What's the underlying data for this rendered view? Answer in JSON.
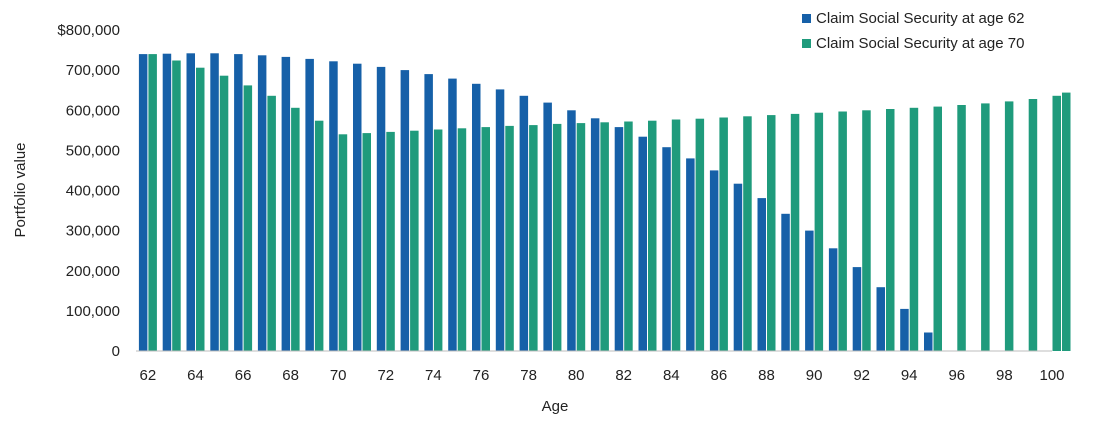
{
  "chart_data": {
    "type": "bar",
    "title": "",
    "xlabel": "Age",
    "ylabel": "Portfolio value",
    "ylim": [
      0,
      800000
    ],
    "yticks": [
      {
        "value": 0,
        "label": "0"
      },
      {
        "value": 100000,
        "label": "100,000"
      },
      {
        "value": 200000,
        "label": "200,000"
      },
      {
        "value": 300000,
        "label": "300,000"
      },
      {
        "value": 400000,
        "label": "400,000"
      },
      {
        "value": 500000,
        "label": "500,000"
      },
      {
        "value": 600000,
        "label": "600,000"
      },
      {
        "value": 700000,
        "label": "700,000"
      },
      {
        "value": 800000,
        "label": "$800,000"
      }
    ],
    "xtick_labels": [
      "62",
      "64",
      "66",
      "68",
      "70",
      "72",
      "74",
      "76",
      "78",
      "80",
      "82",
      "84",
      "86",
      "88",
      "90",
      "92",
      "94",
      "96",
      "98",
      "100"
    ],
    "categories": [
      62,
      63,
      64,
      65,
      66,
      67,
      68,
      69,
      70,
      71,
      72,
      73,
      74,
      75,
      76,
      77,
      78,
      79,
      80,
      81,
      82,
      83,
      84,
      85,
      86,
      87,
      88,
      89,
      90,
      91,
      92,
      93,
      94,
      95,
      96,
      97,
      98,
      99,
      100
    ],
    "legend_position": "top-right",
    "grid": false,
    "series": [
      {
        "name": "Claim Social Security at age 62",
        "color": "#1660a8",
        "values": [
          740000,
          741000,
          742000,
          742000,
          740000,
          737000,
          733000,
          728000,
          722000,
          716000,
          708000,
          700000,
          690000,
          679000,
          666000,
          652000,
          636000,
          619000,
          600000,
          580000,
          558000,
          534000,
          508000,
          480000,
          450000,
          417000,
          381000,
          342000,
          300000,
          256000,
          209000,
          159000,
          105000,
          46000,
          null,
          null,
          null,
          null,
          null
        ]
      },
      {
        "name": "Claim Social Security at age 70",
        "color": "#1f9b7c",
        "values": [
          740000,
          724000,
          706000,
          686000,
          662000,
          636000,
          606000,
          574000,
          540000,
          543000,
          546000,
          549000,
          552000,
          555000,
          558000,
          561000,
          563000,
          566000,
          568000,
          570000,
          572000,
          574000,
          577000,
          579000,
          582000,
          585000,
          588000,
          591000,
          594000,
          597000,
          600000,
          603000,
          606000,
          609000,
          613000,
          617000,
          622000,
          628000,
          636000
        ]
      },
      {
        "name": "",
        "color": "#1f9b7c",
        "values": [
          null,
          null,
          null,
          null,
          null,
          null,
          null,
          null,
          null,
          null,
          null,
          null,
          null,
          null,
          null,
          null,
          null,
          null,
          null,
          null,
          null,
          null,
          null,
          null,
          null,
          null,
          null,
          null,
          null,
          null,
          null,
          null,
          null,
          null,
          null,
          null,
          null,
          null,
          644000
        ]
      }
    ]
  }
}
